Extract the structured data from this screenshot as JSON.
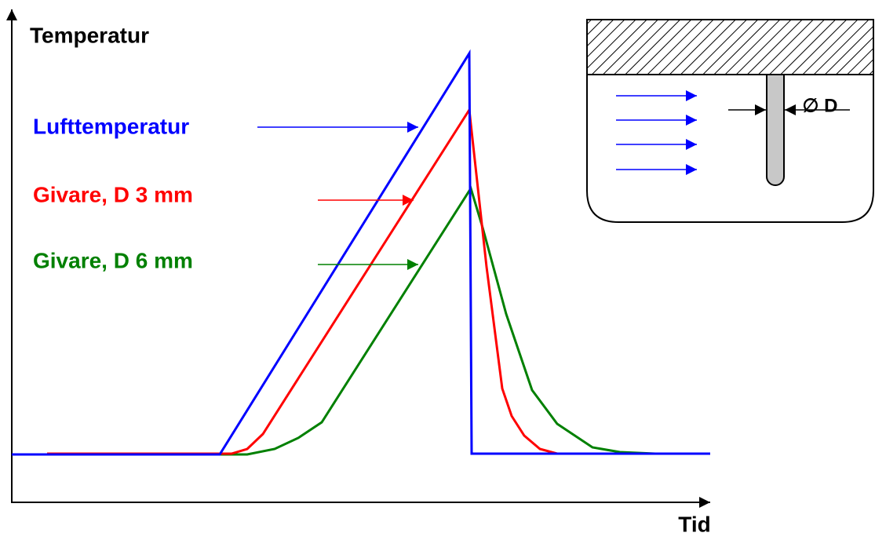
{
  "axes": {
    "y_label": "Temperatur",
    "x_label": "Tid"
  },
  "labels": [
    {
      "text": "Lufttemperatur",
      "color": "#0000ff"
    },
    {
      "text": "Givare, D 3 mm",
      "color": "#ff0000"
    },
    {
      "text": "Givare, D 6 mm",
      "color": "#008000"
    }
  ],
  "inset": {
    "dimension_label": "∅ D"
  }
}
